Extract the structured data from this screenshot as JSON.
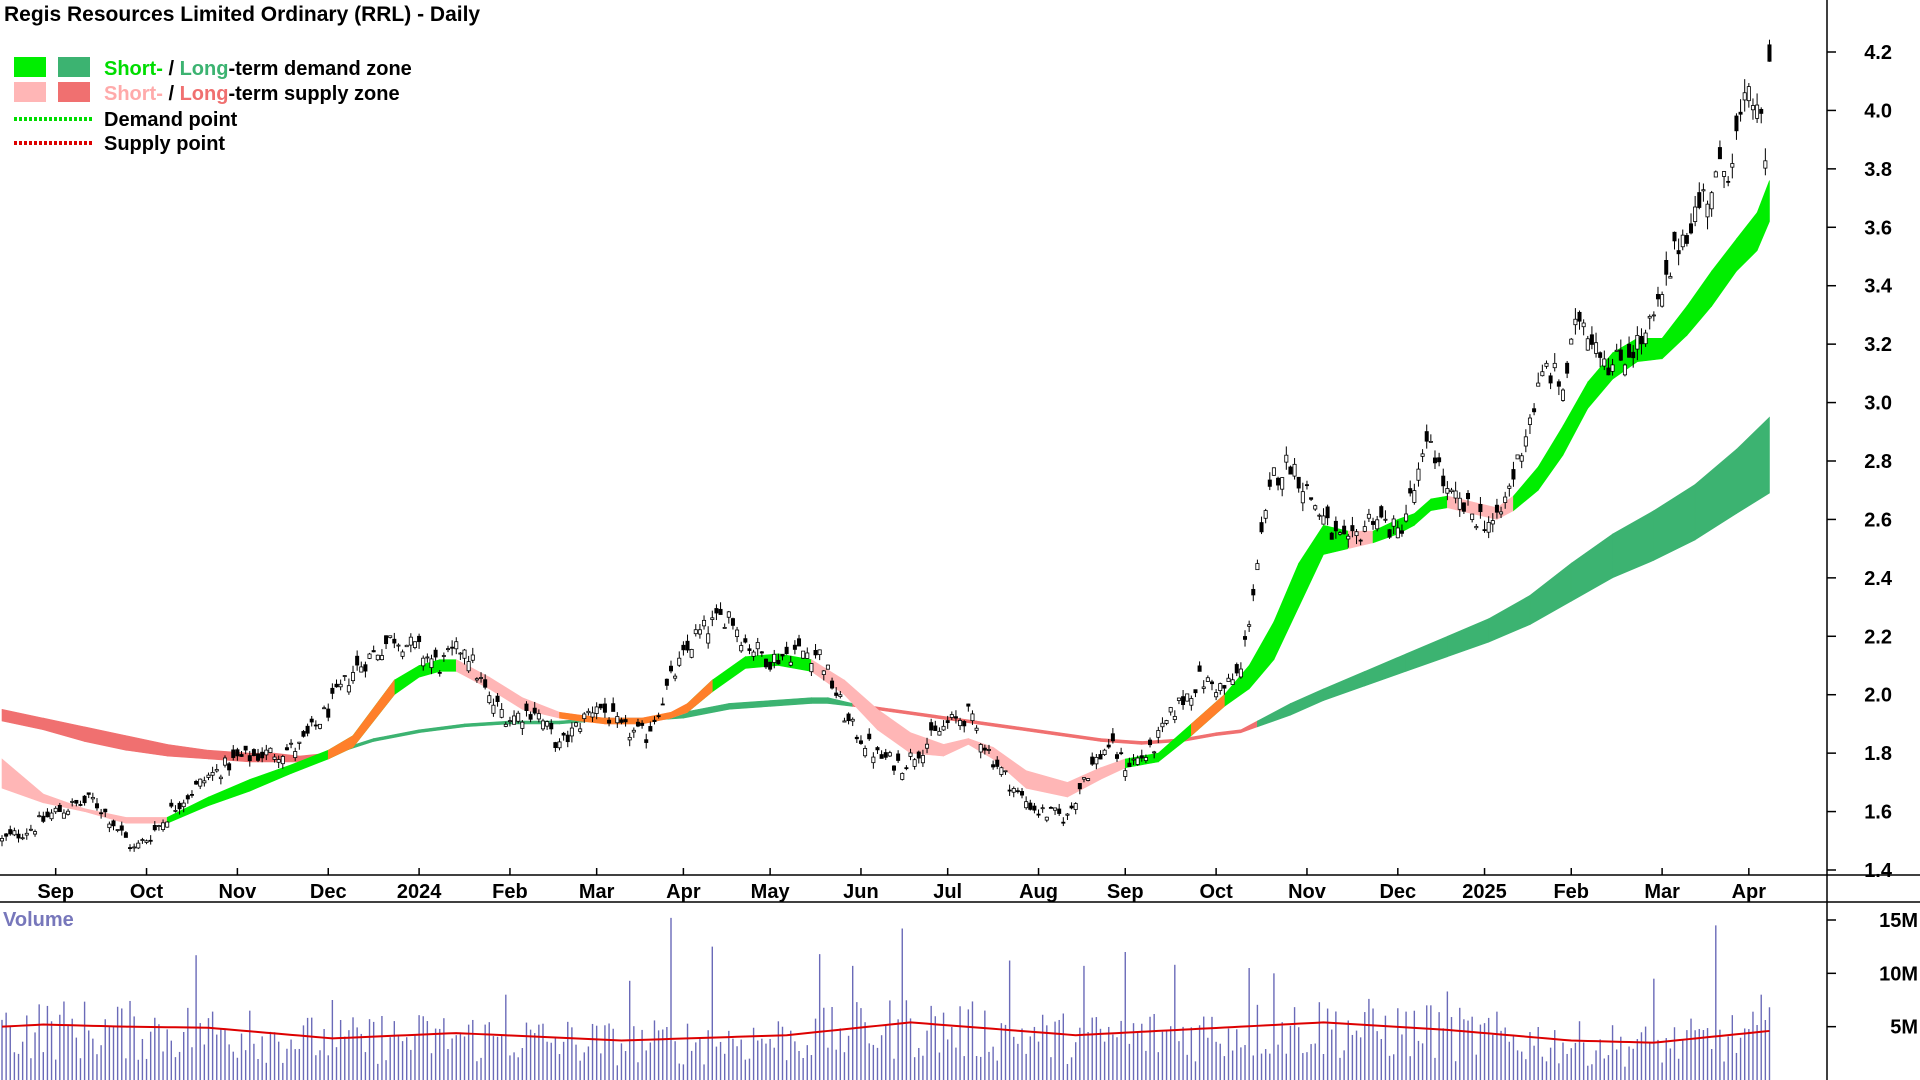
{
  "chart_data": {
    "type": "candlestick",
    "title": "Regis Resources Limited Ordinary (RRL) - Daily",
    "legend": [
      {
        "key": "demand_zone",
        "short_label": "Short-",
        "sep": " / ",
        "long_label": "Long",
        "rest": "-term demand zone",
        "short_color": "#00ee00",
        "long_color": "#3cb371"
      },
      {
        "key": "supply_zone",
        "short_label": "Short-",
        "sep": " / ",
        "long_label": "Long",
        "rest": "-term supply zone",
        "short_color": "#ffb6b6",
        "long_color": "#f07070"
      },
      {
        "key": "demand_point",
        "label": "Demand point",
        "color": "#00dd00"
      },
      {
        "key": "supply_point",
        "label": "Supply point",
        "color": "#dd0000"
      }
    ],
    "x_ticks": [
      "Sep",
      "Oct",
      "Nov",
      "Dec",
      "2024",
      "Feb",
      "Mar",
      "Apr",
      "May",
      "Jun",
      "Jul",
      "Aug",
      "Sep",
      "Oct",
      "Nov",
      "Dec",
      "2025",
      "Feb",
      "Mar",
      "Apr"
    ],
    "x_tick_index": [
      13,
      35,
      57,
      79,
      101,
      123,
      144,
      165,
      186,
      208,
      229,
      251,
      272,
      294,
      316,
      338,
      359,
      380,
      402,
      423
    ],
    "n_sessions": 433,
    "y_ticks": [
      "1.4",
      "1.6",
      "1.8",
      "2.0",
      "2.2",
      "2.4",
      "2.6",
      "2.8",
      "3.0",
      "3.2",
      "3.4",
      "3.6",
      "3.8",
      "4.0",
      "4.2"
    ],
    "ylim": [
      1.33,
      4.28
    ],
    "price_path": [
      [
        0,
        1.5
      ],
      [
        8,
        1.55
      ],
      [
        13,
        1.6
      ],
      [
        22,
        1.64
      ],
      [
        26,
        1.58
      ],
      [
        32,
        1.47
      ],
      [
        36,
        1.52
      ],
      [
        42,
        1.62
      ],
      [
        50,
        1.72
      ],
      [
        57,
        1.78
      ],
      [
        65,
        1.8
      ],
      [
        72,
        1.82
      ],
      [
        79,
        1.95
      ],
      [
        85,
        2.08
      ],
      [
        95,
        2.2
      ],
      [
        101,
        2.15
      ],
      [
        106,
        2.1
      ],
      [
        112,
        2.17
      ],
      [
        118,
        1.98
      ],
      [
        123,
        1.92
      ],
      [
        129,
        1.95
      ],
      [
        135,
        1.82
      ],
      [
        144,
        1.97
      ],
      [
        150,
        1.88
      ],
      [
        156,
        1.86
      ],
      [
        162,
        2.05
      ],
      [
        168,
        2.2
      ],
      [
        176,
        2.28
      ],
      [
        180,
        2.18
      ],
      [
        186,
        2.12
      ],
      [
        192,
        2.15
      ],
      [
        198,
        2.14
      ],
      [
        205,
        1.9
      ],
      [
        212,
        1.79
      ],
      [
        218,
        1.76
      ],
      [
        222,
        1.81
      ],
      [
        229,
        1.9
      ],
      [
        234,
        1.93
      ],
      [
        240,
        1.78
      ],
      [
        246,
        1.66
      ],
      [
        251,
        1.6
      ],
      [
        258,
        1.58
      ],
      [
        262,
        1.72
      ],
      [
        268,
        1.83
      ],
      [
        272,
        1.76
      ],
      [
        278,
        1.8
      ],
      [
        284,
        1.95
      ],
      [
        290,
        2.05
      ],
      [
        296,
        2.02
      ],
      [
        300,
        2.08
      ],
      [
        304,
        2.45
      ],
      [
        308,
        2.75
      ],
      [
        312,
        2.8
      ],
      [
        316,
        2.7
      ],
      [
        322,
        2.55
      ],
      [
        326,
        2.5
      ],
      [
        332,
        2.62
      ],
      [
        338,
        2.55
      ],
      [
        342,
        2.7
      ],
      [
        346,
        2.88
      ],
      [
        350,
        2.68
      ],
      [
        356,
        2.62
      ],
      [
        362,
        2.58
      ],
      [
        366,
        2.75
      ],
      [
        370,
        2.95
      ],
      [
        374,
        3.12
      ],
      [
        378,
        3.05
      ],
      [
        382,
        3.3
      ],
      [
        386,
        3.22
      ],
      [
        390,
        3.12
      ],
      [
        394,
        3.18
      ],
      [
        398,
        3.22
      ],
      [
        402,
        3.35
      ],
      [
        406,
        3.55
      ],
      [
        412,
        3.7
      ],
      [
        418,
        3.82
      ],
      [
        422,
        4.0
      ],
      [
        425,
        4.05
      ],
      [
        427,
        3.8
      ],
      [
        428,
        4.2
      ]
    ],
    "short_term_zone": [
      [
        0,
        1.78,
        1.68,
        "s"
      ],
      [
        10,
        1.66,
        1.63,
        "s"
      ],
      [
        20,
        1.61,
        1.6,
        "s"
      ],
      [
        30,
        1.58,
        1.56,
        "s"
      ],
      [
        40,
        1.58,
        1.56,
        "d"
      ],
      [
        50,
        1.65,
        1.62,
        "d"
      ],
      [
        60,
        1.71,
        1.67,
        "d"
      ],
      [
        70,
        1.76,
        1.73,
        "d"
      ],
      [
        79,
        1.81,
        1.78,
        "d"
      ],
      [
        85,
        1.86,
        1.82,
        "d"
      ],
      [
        95,
        2.05,
        2.0,
        "d"
      ],
      [
        101,
        2.1,
        2.06,
        "d"
      ],
      [
        106,
        2.12,
        2.08,
        "d"
      ],
      [
        110,
        2.12,
        2.08,
        "s"
      ],
      [
        118,
        2.06,
        2.02,
        "s"
      ],
      [
        126,
        1.99,
        1.95,
        "s"
      ],
      [
        135,
        1.94,
        1.92,
        "s"
      ],
      [
        140,
        1.93,
        1.91,
        "s"
      ],
      [
        146,
        1.92,
        1.9,
        "s"
      ],
      [
        155,
        1.92,
        1.9,
        "s"
      ],
      [
        162,
        1.94,
        1.92,
        "s"
      ],
      [
        166,
        1.97,
        1.94,
        "d"
      ],
      [
        172,
        2.05,
        2.01,
        "d"
      ],
      [
        180,
        2.13,
        2.09,
        "d"
      ],
      [
        188,
        2.14,
        2.1,
        "d"
      ],
      [
        196,
        2.12,
        2.08,
        "s"
      ],
      [
        204,
        2.05,
        2.0,
        "s"
      ],
      [
        212,
        1.95,
        1.88,
        "s"
      ],
      [
        220,
        1.87,
        1.8,
        "s"
      ],
      [
        228,
        1.83,
        1.79,
        "s"
      ],
      [
        234,
        1.85,
        1.83,
        "s"
      ],
      [
        240,
        1.82,
        1.78,
        "s"
      ],
      [
        248,
        1.74,
        1.68,
        "s"
      ],
      [
        258,
        1.7,
        1.65,
        "s"
      ],
      [
        266,
        1.75,
        1.71,
        "s"
      ],
      [
        272,
        1.78,
        1.75,
        "d"
      ],
      [
        280,
        1.8,
        1.77,
        "d"
      ],
      [
        288,
        1.9,
        1.86,
        "d"
      ],
      [
        296,
        2.0,
        1.96,
        "d"
      ],
      [
        302,
        2.1,
        2.02,
        "d"
      ],
      [
        308,
        2.25,
        2.12,
        "d"
      ],
      [
        314,
        2.45,
        2.3,
        "d"
      ],
      [
        320,
        2.58,
        2.48,
        "d"
      ],
      [
        326,
        2.56,
        2.5,
        "s"
      ],
      [
        332,
        2.56,
        2.52,
        "d"
      ],
      [
        338,
        2.6,
        2.55,
        "d"
      ],
      [
        342,
        2.62,
        2.58,
        "d"
      ],
      [
        346,
        2.67,
        2.63,
        "d"
      ],
      [
        350,
        2.68,
        2.64,
        "s"
      ],
      [
        356,
        2.66,
        2.62,
        "s"
      ],
      [
        362,
        2.64,
        2.6,
        "s"
      ],
      [
        366,
        2.68,
        2.63,
        "d"
      ],
      [
        372,
        2.78,
        2.7,
        "d"
      ],
      [
        378,
        2.92,
        2.82,
        "d"
      ],
      [
        384,
        3.07,
        2.98,
        "d"
      ],
      [
        390,
        3.17,
        3.08,
        "d"
      ],
      [
        396,
        3.22,
        3.14,
        "d"
      ],
      [
        402,
        3.22,
        3.15,
        "d"
      ],
      [
        408,
        3.33,
        3.23,
        "d"
      ],
      [
        414,
        3.45,
        3.33,
        "d"
      ],
      [
        420,
        3.56,
        3.45,
        "d"
      ],
      [
        425,
        3.65,
        3.52,
        "d"
      ],
      [
        428,
        3.76,
        3.62,
        "d"
      ]
    ],
    "long_term_zone": [
      [
        0,
        1.95,
        1.91,
        "s"
      ],
      [
        10,
        1.92,
        1.88,
        "s"
      ],
      [
        20,
        1.89,
        1.84,
        "s"
      ],
      [
        30,
        1.86,
        1.81,
        "s"
      ],
      [
        40,
        1.83,
        1.79,
        "s"
      ],
      [
        50,
        1.81,
        1.78,
        "s"
      ],
      [
        60,
        1.8,
        1.77,
        "s"
      ],
      [
        66,
        1.8,
        1.77,
        "s"
      ],
      [
        72,
        1.79,
        1.77,
        "s"
      ],
      [
        79,
        1.8,
        1.79,
        "d"
      ],
      [
        90,
        1.85,
        1.84,
        "d"
      ],
      [
        101,
        1.88,
        1.87,
        "d"
      ],
      [
        112,
        1.9,
        1.89,
        "d"
      ],
      [
        123,
        1.91,
        1.9,
        "d"
      ],
      [
        135,
        1.91,
        1.9,
        "d"
      ],
      [
        144,
        1.92,
        1.91,
        "d"
      ],
      [
        155,
        1.92,
        1.91,
        "d"
      ],
      [
        165,
        1.94,
        1.92,
        "d"
      ],
      [
        176,
        1.97,
        1.95,
        "d"
      ],
      [
        186,
        1.98,
        1.96,
        "d"
      ],
      [
        196,
        1.99,
        1.97,
        "d"
      ],
      [
        200,
        1.99,
        1.97,
        "d"
      ],
      [
        206,
        1.97,
        1.96,
        "s"
      ],
      [
        216,
        1.95,
        1.94,
        "s"
      ],
      [
        226,
        1.93,
        1.92,
        "s"
      ],
      [
        236,
        1.91,
        1.9,
        "s"
      ],
      [
        246,
        1.89,
        1.88,
        "s"
      ],
      [
        256,
        1.87,
        1.86,
        "s"
      ],
      [
        266,
        1.85,
        1.84,
        "s"
      ],
      [
        276,
        1.84,
        1.83,
        "s"
      ],
      [
        286,
        1.85,
        1.84,
        "s"
      ],
      [
        294,
        1.87,
        1.86,
        "s"
      ],
      [
        300,
        1.88,
        1.87,
        "s"
      ],
      [
        304,
        1.91,
        1.89,
        "d"
      ],
      [
        312,
        1.97,
        1.93,
        "d"
      ],
      [
        320,
        2.02,
        1.98,
        "d"
      ],
      [
        330,
        2.08,
        2.03,
        "d"
      ],
      [
        340,
        2.14,
        2.08,
        "d"
      ],
      [
        350,
        2.2,
        2.13,
        "d"
      ],
      [
        360,
        2.26,
        2.18,
        "d"
      ],
      [
        370,
        2.34,
        2.24,
        "d"
      ],
      [
        380,
        2.45,
        2.32,
        "d"
      ],
      [
        390,
        2.55,
        2.4,
        "d"
      ],
      [
        400,
        2.63,
        2.46,
        "d"
      ],
      [
        410,
        2.72,
        2.53,
        "d"
      ],
      [
        420,
        2.84,
        2.62,
        "d"
      ],
      [
        428,
        2.95,
        2.69,
        "d"
      ]
    ],
    "volume": {
      "label": "Volume",
      "y_ticks": [
        "5M",
        "10M",
        "15M"
      ],
      "ylim": [
        0,
        16
      ],
      "avg_path": [
        [
          0,
          5.0
        ],
        [
          10,
          5.2
        ],
        [
          30,
          5.0
        ],
        [
          50,
          4.9
        ],
        [
          80,
          3.9
        ],
        [
          110,
          4.4
        ],
        [
          150,
          3.7
        ],
        [
          190,
          4.2
        ],
        [
          220,
          5.4
        ],
        [
          260,
          4.2
        ],
        [
          290,
          4.8
        ],
        [
          320,
          5.4
        ],
        [
          350,
          4.7
        ],
        [
          380,
          3.7
        ],
        [
          400,
          3.5
        ],
        [
          428,
          4.6
        ]
      ],
      "spikes": [
        [
          47,
          11.7
        ],
        [
          60,
          6.5
        ],
        [
          80,
          7.5
        ],
        [
          92,
          6.0
        ],
        [
          122,
          8.0
        ],
        [
          152,
          9.3
        ],
        [
          162,
          15.2
        ],
        [
          172,
          12.5
        ],
        [
          198,
          11.8
        ],
        [
          206,
          10.7
        ],
        [
          218,
          14.2
        ],
        [
          244,
          11.2
        ],
        [
          262,
          10.7
        ],
        [
          272,
          12.0
        ],
        [
          284,
          10.8
        ],
        [
          302,
          10.5
        ],
        [
          308,
          10.0
        ],
        [
          346,
          7.0
        ],
        [
          350,
          8.3
        ],
        [
          400,
          9.5
        ],
        [
          415,
          14.5
        ],
        [
          426,
          8.0
        ]
      ]
    }
  }
}
